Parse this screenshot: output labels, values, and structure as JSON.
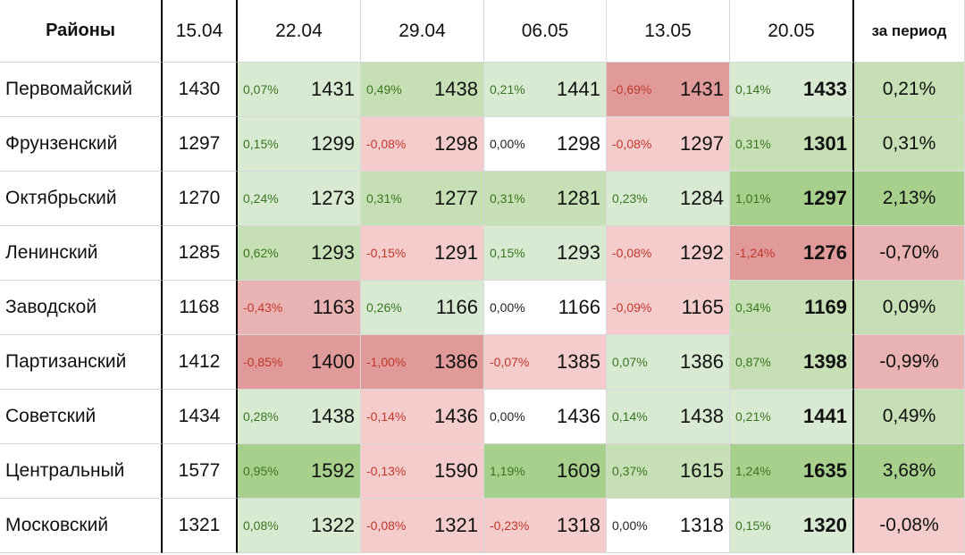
{
  "table": {
    "header": {
      "district": "Районы",
      "dates": [
        "15.04",
        "22.04",
        "29.04",
        "06.05",
        "13.05",
        "20.05"
      ],
      "total": "за период"
    },
    "rows": [
      {
        "name": "Первомайский",
        "base": "1430",
        "weeks": [
          {
            "pct": "0,07%",
            "val": "1431"
          },
          {
            "pct": "0,49%",
            "val": "1438"
          },
          {
            "pct": "0,21%",
            "val": "1441"
          },
          {
            "pct": "-0,69%",
            "val": "1431"
          },
          {
            "pct": "0,14%",
            "val": "1433"
          }
        ],
        "total": "0,21%"
      },
      {
        "name": "Фрунзенский",
        "base": "1297",
        "weeks": [
          {
            "pct": "0,15%",
            "val": "1299"
          },
          {
            "pct": "-0,08%",
            "val": "1298"
          },
          {
            "pct": "0,00%",
            "val": "1298"
          },
          {
            "pct": "-0,08%",
            "val": "1297"
          },
          {
            "pct": "0,31%",
            "val": "1301"
          }
        ],
        "total": "0,31%"
      },
      {
        "name": "Октябрьский",
        "base": "1270",
        "weeks": [
          {
            "pct": "0,24%",
            "val": "1273"
          },
          {
            "pct": "0,31%",
            "val": "1277"
          },
          {
            "pct": "0,31%",
            "val": "1281"
          },
          {
            "pct": "0,23%",
            "val": "1284"
          },
          {
            "pct": "1,01%",
            "val": "1297"
          }
        ],
        "total": "2,13%"
      },
      {
        "name": "Ленинский",
        "base": "1285",
        "weeks": [
          {
            "pct": "0,62%",
            "val": "1293"
          },
          {
            "pct": "-0,15%",
            "val": "1291"
          },
          {
            "pct": "0,15%",
            "val": "1293"
          },
          {
            "pct": "-0,08%",
            "val": "1292"
          },
          {
            "pct": "-1,24%",
            "val": "1276"
          }
        ],
        "total": "-0,70%"
      },
      {
        "name": "Заводской",
        "base": "1168",
        "weeks": [
          {
            "pct": "-0,43%",
            "val": "1163"
          },
          {
            "pct": "0,26%",
            "val": "1166"
          },
          {
            "pct": "0,00%",
            "val": "1166"
          },
          {
            "pct": "-0,09%",
            "val": "1165"
          },
          {
            "pct": "0,34%",
            "val": "1169"
          }
        ],
        "total": "0,09%"
      },
      {
        "name": "Партизанский",
        "base": "1412",
        "weeks": [
          {
            "pct": "-0,85%",
            "val": "1400"
          },
          {
            "pct": "-1,00%",
            "val": "1386"
          },
          {
            "pct": "-0,07%",
            "val": "1385"
          },
          {
            "pct": "0,07%",
            "val": "1386"
          },
          {
            "pct": "0,87%",
            "val": "1398"
          }
        ],
        "total": "-0,99%"
      },
      {
        "name": "Советский",
        "base": "1434",
        "weeks": [
          {
            "pct": "0,28%",
            "val": "1438"
          },
          {
            "pct": "-0,14%",
            "val": "1436"
          },
          {
            "pct": "0,00%",
            "val": "1436"
          },
          {
            "pct": "0,14%",
            "val": "1438"
          },
          {
            "pct": "0,21%",
            "val": "1441"
          }
        ],
        "total": "0,49%"
      },
      {
        "name": "Центральный",
        "base": "1577",
        "weeks": [
          {
            "pct": "0,95%",
            "val": "1592"
          },
          {
            "pct": "-0,13%",
            "val": "1590"
          },
          {
            "pct": "1,19%",
            "val": "1609"
          },
          {
            "pct": "0,37%",
            "val": "1615"
          },
          {
            "pct": "1,24%",
            "val": "1635"
          }
        ],
        "total": "3,68%"
      },
      {
        "name": "Московский",
        "base": "1321",
        "weeks": [
          {
            "pct": "0,08%",
            "val": "1322"
          },
          {
            "pct": "-0,08%",
            "val": "1321"
          },
          {
            "pct": "-0,23%",
            "val": "1318"
          },
          {
            "pct": "0,00%",
            "val": "1318"
          },
          {
            "pct": "0,15%",
            "val": "1320"
          }
        ],
        "total": "-0,08%"
      }
    ]
  },
  "chart_data": {
    "type": "table",
    "columns": [
      "Районы",
      "15.04",
      "22.04",
      "29.04",
      "06.05",
      "13.05",
      "20.05",
      "за период"
    ],
    "categories": [
      "Первомайский",
      "Фрунзенский",
      "Октябрьский",
      "Ленинский",
      "Заводской",
      "Партизанский",
      "Советский",
      "Центральный",
      "Московский"
    ],
    "values": [
      [
        1430,
        1431,
        1438,
        1441,
        1431,
        1433
      ],
      [
        1297,
        1299,
        1298,
        1298,
        1297,
        1301
      ],
      [
        1270,
        1273,
        1277,
        1281,
        1284,
        1297
      ],
      [
        1285,
        1293,
        1291,
        1293,
        1292,
        1276
      ],
      [
        1168,
        1163,
        1166,
        1166,
        1165,
        1169
      ],
      [
        1412,
        1400,
        1386,
        1385,
        1386,
        1398
      ],
      [
        1434,
        1438,
        1436,
        1436,
        1438,
        1441
      ],
      [
        1577,
        1592,
        1590,
        1609,
        1615,
        1635
      ],
      [
        1321,
        1322,
        1321,
        1318,
        1318,
        1320
      ]
    ],
    "weekly_change_pct": [
      [
        0.07,
        0.49,
        0.21,
        -0.69,
        0.14
      ],
      [
        0.15,
        -0.08,
        0.0,
        -0.08,
        0.31
      ],
      [
        0.24,
        0.31,
        0.31,
        0.23,
        1.01
      ],
      [
        0.62,
        -0.15,
        0.15,
        -0.08,
        -1.24
      ],
      [
        -0.43,
        0.26,
        0.0,
        -0.09,
        0.34
      ],
      [
        -0.85,
        -1.0,
        -0.07,
        0.07,
        0.87
      ],
      [
        0.28,
        -0.14,
        0.0,
        0.14,
        0.21
      ],
      [
        0.95,
        -0.13,
        1.19,
        0.37,
        1.24
      ],
      [
        0.08,
        -0.08,
        -0.23,
        0.0,
        0.15
      ]
    ],
    "period_change_pct": [
      0.21,
      0.31,
      2.13,
      -0.7,
      0.09,
      -0.99,
      0.49,
      3.68,
      -0.08
    ],
    "colors": {
      "positive_low": "#d9ead3",
      "positive_mid": "#c6dfb4",
      "positive_high": "#a8d08d",
      "negative_low": "#f4cccc",
      "negative_mid": "#eab3b3",
      "negative_high": "#e09a9a",
      "neutral": "#ffffff",
      "pct_text_positive": "#38761d",
      "pct_text_negative": "#c0392b"
    }
  }
}
